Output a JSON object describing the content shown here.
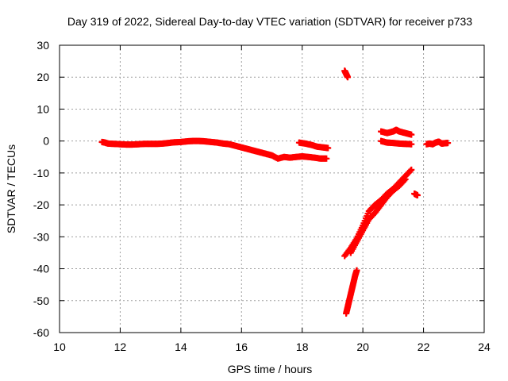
{
  "chart_data": {
    "type": "scatter",
    "title": "Day 319 of 2022, Sidereal Day-to-day VTEC variation (SDTVAR) for receiver p733",
    "xlabel": "GPS time / hours",
    "ylabel": "SDTVAR / TECUs",
    "xlim": [
      10,
      24
    ],
    "ylim": [
      -60,
      30
    ],
    "xticks": [
      10,
      12,
      14,
      16,
      18,
      20,
      22,
      24
    ],
    "yticks": [
      -60,
      -50,
      -40,
      -30,
      -20,
      -10,
      0,
      10,
      20,
      30
    ],
    "xtick_labels": [
      "10",
      "12",
      "14",
      "16",
      "18",
      "20",
      "22",
      "24"
    ],
    "ytick_labels": [
      "-60",
      "-50",
      "-40",
      "-30",
      "-20",
      "-10",
      "0",
      "10",
      "20",
      "30"
    ],
    "grid": true,
    "marker_color": "#ff0000",
    "series": [
      {
        "points": [
          [
            11.4,
            -0.3
          ],
          [
            11.5,
            -0.5
          ],
          [
            11.6,
            -0.8
          ],
          [
            11.8,
            -0.9
          ],
          [
            12.0,
            -1.0
          ],
          [
            12.2,
            -1.1
          ],
          [
            12.4,
            -1.1
          ],
          [
            12.6,
            -1.0
          ],
          [
            12.8,
            -0.9
          ],
          [
            13.0,
            -0.9
          ],
          [
            13.2,
            -0.9
          ],
          [
            13.4,
            -0.8
          ],
          [
            13.6,
            -0.6
          ],
          [
            13.8,
            -0.4
          ],
          [
            14.0,
            -0.3
          ],
          [
            14.2,
            -0.1
          ],
          [
            14.4,
            0.0
          ],
          [
            14.6,
            0.0
          ],
          [
            14.8,
            -0.1
          ],
          [
            15.0,
            -0.3
          ],
          [
            15.2,
            -0.5
          ],
          [
            15.4,
            -0.8
          ],
          [
            15.6,
            -1.0
          ],
          [
            15.8,
            -1.5
          ],
          [
            16.0,
            -2.0
          ],
          [
            16.2,
            -2.5
          ],
          [
            16.4,
            -3.0
          ],
          [
            16.6,
            -3.5
          ],
          [
            16.8,
            -4.0
          ],
          [
            17.0,
            -4.5
          ],
          [
            17.2,
            -5.5
          ],
          [
            17.4,
            -5.0
          ],
          [
            17.6,
            -5.2
          ],
          [
            17.8,
            -5.0
          ],
          [
            18.0,
            -4.8
          ],
          [
            18.2,
            -5.0
          ],
          [
            18.4,
            -5.2
          ],
          [
            18.6,
            -5.5
          ],
          [
            18.8,
            -5.5
          ]
        ]
      },
      {
        "points": [
          [
            17.9,
            -0.5
          ],
          [
            18.1,
            -0.8
          ],
          [
            18.3,
            -1.2
          ],
          [
            18.5,
            -1.8
          ],
          [
            18.7,
            -2.0
          ],
          [
            18.85,
            -2.2
          ]
        ]
      },
      {
        "points": [
          [
            19.4,
            22.0
          ],
          [
            19.45,
            21.0
          ],
          [
            19.5,
            20.0
          ]
        ]
      },
      {
        "points": [
          [
            19.45,
            -54.0
          ],
          [
            19.5,
            -52.0
          ],
          [
            19.55,
            -50.0
          ],
          [
            19.6,
            -48.0
          ],
          [
            19.65,
            -46.0
          ],
          [
            19.7,
            -44.0
          ],
          [
            19.75,
            -42.0
          ],
          [
            19.8,
            -40.5
          ]
        ]
      },
      {
        "points": [
          [
            19.4,
            -36.0
          ],
          [
            19.6,
            -33.5
          ],
          [
            19.8,
            -30.5
          ],
          [
            20.0,
            -26.5
          ],
          [
            20.2,
            -22.0
          ],
          [
            20.4,
            -20.0
          ],
          [
            20.6,
            -18.5
          ],
          [
            20.8,
            -16.5
          ],
          [
            21.0,
            -15.0
          ],
          [
            21.2,
            -13.0
          ],
          [
            21.4,
            -11.0
          ],
          [
            21.6,
            -9.0
          ]
        ]
      },
      {
        "points": [
          [
            19.6,
            -35.0
          ],
          [
            19.8,
            -31.5
          ],
          [
            20.0,
            -28.0
          ],
          [
            20.2,
            -24.5
          ],
          [
            20.4,
            -22.5
          ],
          [
            20.6,
            -20.0
          ],
          [
            20.8,
            -17.5
          ],
          [
            21.0,
            -15.5
          ],
          [
            21.2,
            -14.0
          ],
          [
            21.4,
            -12.0
          ]
        ]
      },
      {
        "points": [
          [
            21.7,
            -16.5
          ],
          [
            21.8,
            -17.0
          ]
        ]
      },
      {
        "points": [
          [
            20.6,
            3.0
          ],
          [
            20.8,
            2.5
          ],
          [
            21.0,
            3.0
          ],
          [
            21.1,
            3.5
          ],
          [
            21.2,
            3.0
          ],
          [
            21.4,
            2.5
          ],
          [
            21.6,
            2.0
          ]
        ]
      },
      {
        "points": [
          [
            20.6,
            0.0
          ],
          [
            20.8,
            -0.5
          ],
          [
            21.0,
            -0.6
          ],
          [
            21.2,
            -0.8
          ],
          [
            21.4,
            -0.9
          ],
          [
            21.6,
            -1.0
          ]
        ]
      },
      {
        "points": [
          [
            22.1,
            -1.0
          ],
          [
            22.2,
            -0.8
          ],
          [
            22.3,
            -1.0
          ],
          [
            22.4,
            -0.5
          ],
          [
            22.5,
            -0.2
          ],
          [
            22.6,
            -0.8
          ],
          [
            22.7,
            -0.7
          ],
          [
            22.8,
            -0.6
          ]
        ]
      }
    ]
  }
}
